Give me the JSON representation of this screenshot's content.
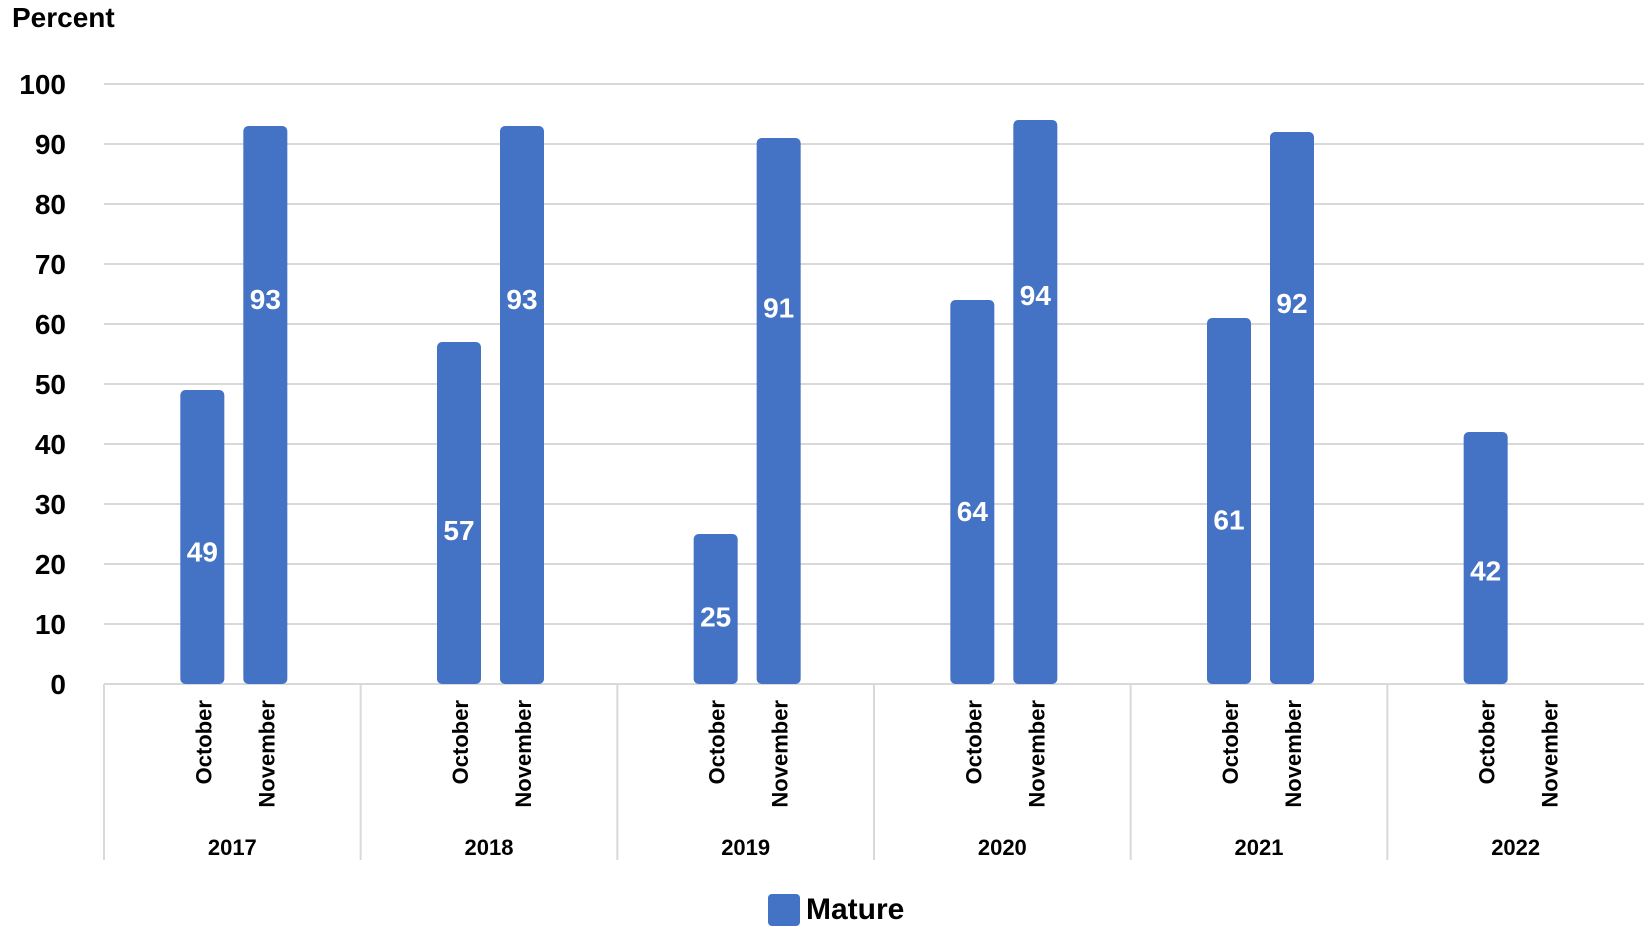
{
  "chart_data": {
    "type": "bar",
    "ylabel": "Percent",
    "ylim": [
      0,
      100
    ],
    "yticks": [
      0,
      10,
      20,
      30,
      40,
      50,
      60,
      70,
      80,
      90,
      100
    ],
    "grid": true,
    "legend_position": "bottom",
    "groups": [
      {
        "label": "2017",
        "categories": [
          "October",
          "November"
        ],
        "values": [
          49,
          93
        ]
      },
      {
        "label": "2018",
        "categories": [
          "October",
          "November"
        ],
        "values": [
          57,
          93
        ]
      },
      {
        "label": "2019",
        "categories": [
          "October",
          "November"
        ],
        "values": [
          25,
          91
        ]
      },
      {
        "label": "2020",
        "categories": [
          "October",
          "November"
        ],
        "values": [
          64,
          94
        ]
      },
      {
        "label": "2021",
        "categories": [
          "October",
          "November"
        ],
        "values": [
          61,
          92
        ]
      },
      {
        "label": "2022",
        "categories": [
          "October",
          "November"
        ],
        "values": [
          42,
          null
        ]
      }
    ],
    "series": [
      {
        "name": "Mature",
        "color": "#4472C4"
      }
    ],
    "data_label_color": "#ffffff",
    "gridline_color": "#d9d9d9",
    "axis_color": "#d9d9d9"
  }
}
